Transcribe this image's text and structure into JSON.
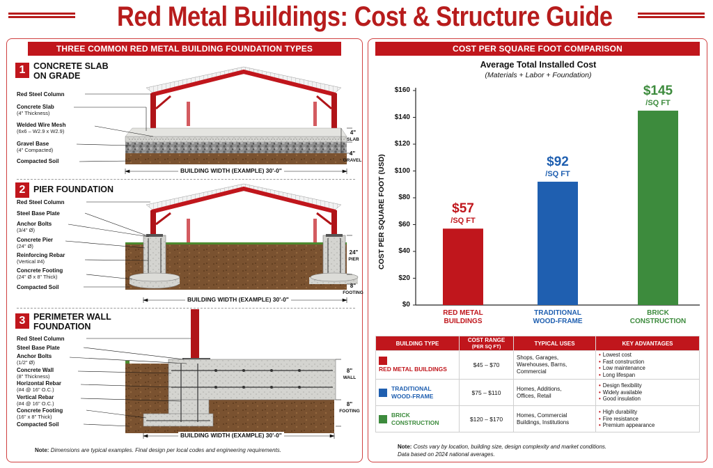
{
  "title": "Red Metal Buildings: Cost & Structure Guide",
  "left_panel": {
    "header": "THREE COMMON RED METAL BUILDING FOUNDATION TYPES",
    "sections": [
      {
        "number": "1",
        "title_line1": "CONCRETE SLAB",
        "title_line2": "ON GRADE",
        "labels": [
          {
            "main": "Red Steel Column",
            "sub": ""
          },
          {
            "main": "Concrete Slab",
            "sub": "(4\" Thickness)"
          },
          {
            "main": "Welded Wire Mesh",
            "sub": "(6x6 – W2.9 x W2.9)"
          },
          {
            "main": "Gravel Base",
            "sub": "(4\" Compacted)"
          },
          {
            "main": "Compacted Soil",
            "sub": ""
          }
        ],
        "dims": [
          {
            "value": "4\"",
            "unit": "SLAB"
          },
          {
            "value": "4\"",
            "unit": "GRAVEL"
          }
        ],
        "width_label": "BUILDING WIDTH (EXAMPLE) 30'-0\""
      },
      {
        "number": "2",
        "title_line1": "PIER FOUNDATION",
        "title_line2": "",
        "labels": [
          {
            "main": "Red Steel Column",
            "sub": ""
          },
          {
            "main": "Steel Base Plate",
            "sub": ""
          },
          {
            "main": "Anchor Bolts",
            "sub": "(3/4\" Ø)"
          },
          {
            "main": "Concrete Pier",
            "sub": "(24\" Ø)"
          },
          {
            "main": "Reinforcing Rebar",
            "sub": "(Vertical #4)"
          },
          {
            "main": "Concrete Footing",
            "sub": "(24\" Ø x 8\" Thick)"
          },
          {
            "main": "Compacted Soil",
            "sub": ""
          }
        ],
        "dims": [
          {
            "value": "24\"",
            "unit": "PIER"
          },
          {
            "value": "8\"",
            "unit": "FOOTING"
          }
        ],
        "width_label": "BUILDING WIDTH (EXAMPLE) 30'-0\""
      },
      {
        "number": "3",
        "title_line1": "PERIMETER WALL",
        "title_line2": "FOUNDATION",
        "labels": [
          {
            "main": "Red Steel Column",
            "sub": ""
          },
          {
            "main": "Steel Base Plate",
            "sub": ""
          },
          {
            "main": "Anchor Bolts",
            "sub": "(1/2\" Ø)"
          },
          {
            "main": "Concrete Wall",
            "sub": "(8\" Thickness)"
          },
          {
            "main": "Horizontal Rebar",
            "sub": "(#4 @ 16\" O.C.)"
          },
          {
            "main": "Vertical Rebar",
            "sub": "(#4 @ 16\" O.C.)"
          },
          {
            "main": "Concrete Footing",
            "sub": "(16\" x 8\" Thick)"
          },
          {
            "main": "Compacted Soil",
            "sub": ""
          }
        ],
        "dims": [
          {
            "value": "8\"",
            "unit": "WALL"
          },
          {
            "value": "8\"",
            "unit": "FOOTING"
          }
        ],
        "width_label": "BUILDING WIDTH (EXAMPLE) 30'-0\""
      }
    ],
    "note_label": "Note:",
    "note_text": "Dimensions are typical examples. Final design per local codes and engineering requirements."
  },
  "right_panel": {
    "header": "COST PER SQUARE FOOT COMPARISON",
    "table": {
      "headers": [
        "BUILDING TYPE",
        "COST RANGE",
        "(PER SQ FT)",
        "TYPICAL USES",
        "KEY ADVANTAGES"
      ],
      "rows": [
        {
          "type_line1": "RED METAL BUILDINGS",
          "type_line2": "",
          "color": "#c0161c",
          "range": "$45 – $70",
          "uses_line1": "Shops, Garages,",
          "uses_line2": "Warehouses, Barns,",
          "uses_line3": "Commercial",
          "advantages": [
            "Lowest cost",
            "Fast construction",
            "Low maintenance",
            "Long lifespan"
          ]
        },
        {
          "type_line1": "TRADITIONAL",
          "type_line2": "WOOD-FRAME",
          "color": "#1f5fb0",
          "range": "$75 – $110",
          "uses_line1": "Homes, Additions,",
          "uses_line2": "Offices, Retail",
          "uses_line3": "",
          "advantages": [
            "Design flexibility",
            "Widely available",
            "Good insulation"
          ]
        },
        {
          "type_line1": "BRICK",
          "type_line2": "CONSTRUCTION",
          "color": "#3d8b3d",
          "range": "$120 – $170",
          "uses_line1": "Homes, Commercial",
          "uses_line2": "Buildings, Institutions",
          "uses_line3": "",
          "advantages": [
            "High durability",
            "Fire resistance",
            "Premium appearance"
          ]
        }
      ]
    },
    "note_label": "Note:",
    "note_text": "Costs vary by location, building size, design complexity and market conditions.",
    "note_text2": "Data based on 2024 national averages."
  },
  "chart_data": {
    "type": "bar",
    "title": "Average Total Installed Cost",
    "subtitle": "(Materials + Labor + Foundation)",
    "ylabel": "COST PER SQUARE FOOT (USD)",
    "xlabel": "",
    "ylim": [
      0,
      160
    ],
    "yticks": [
      "$0",
      "$20",
      "$40",
      "$60",
      "$80",
      "$100",
      "$120",
      "$140",
      "$160"
    ],
    "categories": [
      {
        "line1": "RED METAL",
        "line2": "BUILDINGS"
      },
      {
        "line1": "TRADITIONAL",
        "line2": "WOOD-FRAME"
      },
      {
        "line1": "BRICK",
        "line2": "CONSTRUCTION"
      }
    ],
    "values": [
      57,
      92,
      145
    ],
    "value_labels": [
      "$57",
      "$92",
      "$145"
    ],
    "unit_label": "/SQ FT",
    "colors": [
      "#c0161c",
      "#1f5fb0",
      "#3d8b3d"
    ],
    "grid": false
  }
}
